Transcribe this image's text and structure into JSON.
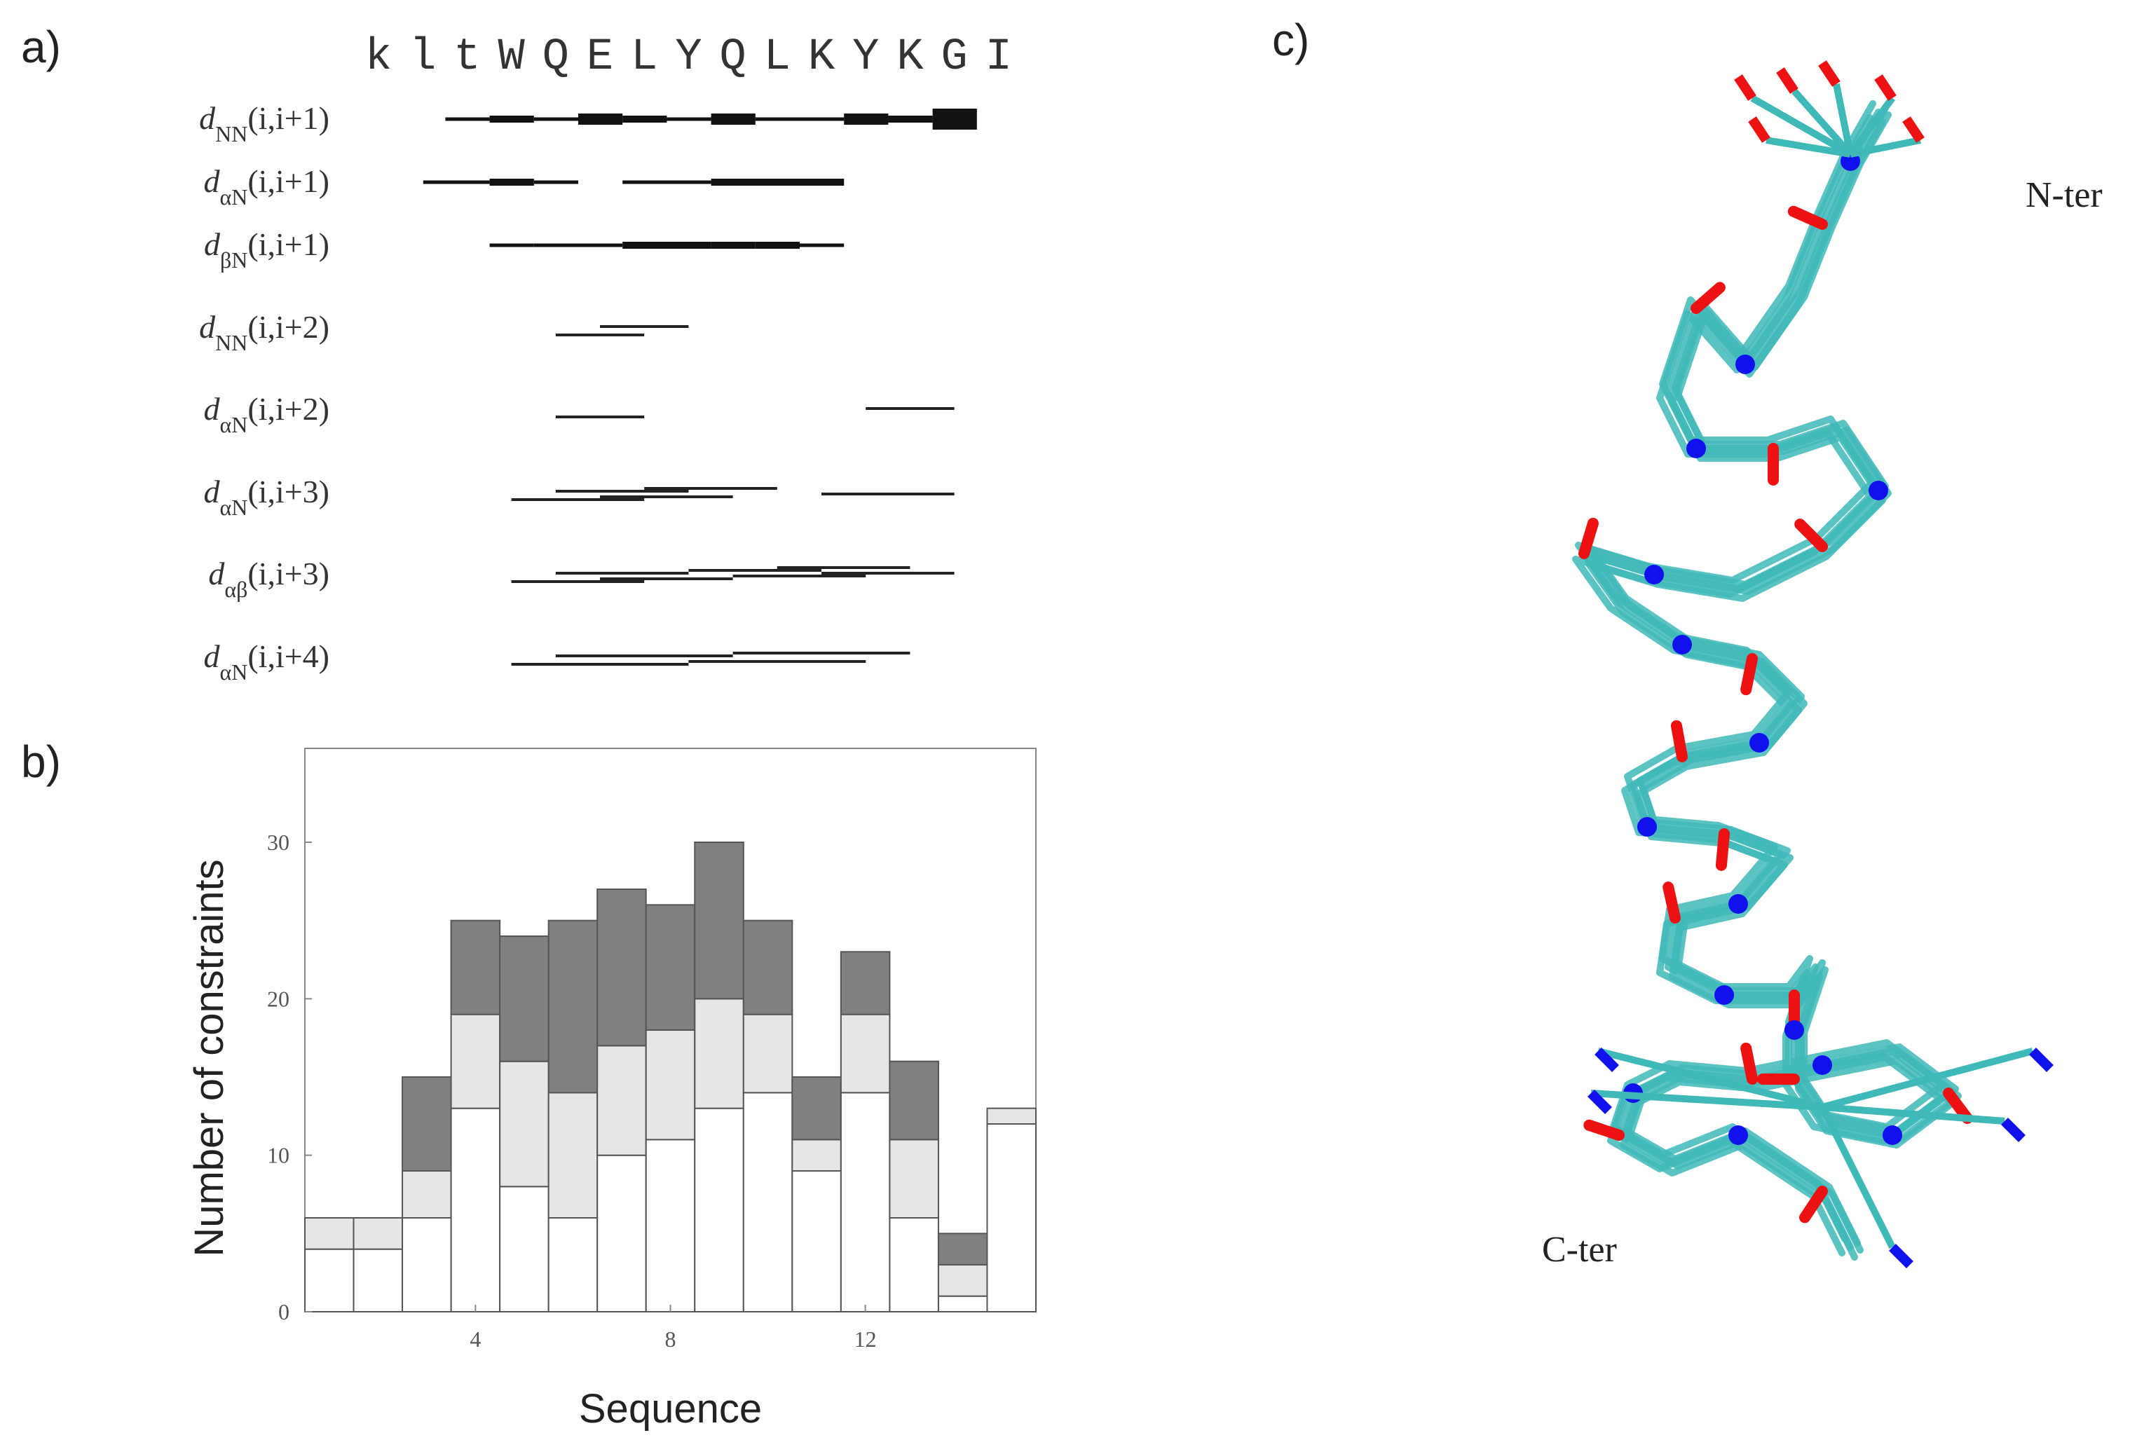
{
  "panels": {
    "a": "a)",
    "b": "b)",
    "c": "c)"
  },
  "sequence": [
    "k",
    "l",
    "t",
    "W",
    "Q",
    "E",
    "L",
    "Y",
    "Q",
    "L",
    "K",
    "Y",
    "K",
    "G",
    "I"
  ],
  "noe_rows": [
    {
      "label": "dNN(i,i+1)",
      "base": "d",
      "sub": "NN",
      "range": "(i,i+1)"
    },
    {
      "label": "dαN(i,i+1)",
      "base": "d",
      "sub": "αN",
      "range": "(i,i+1)"
    },
    {
      "label": "dβN(i,i+1)",
      "base": "d",
      "sub": "βN",
      "range": "(i,i+1)"
    },
    {
      "label": "dNN(i,i+2)",
      "base": "d",
      "sub": "NN",
      "range": "(i,i+2)"
    },
    {
      "label": "dαN(i,i+2)",
      "base": "d",
      "sub": "αN",
      "range": "(i,i+2)"
    },
    {
      "label": "dαN(i,i+3)",
      "base": "d",
      "sub": "αN",
      "range": "(i,i+3)"
    },
    {
      "label": "dαβ(i,i+3)",
      "base": "d",
      "sub": "αβ",
      "range": "(i,i+3)"
    },
    {
      "label": "dαN(i,i+4)",
      "base": "d",
      "sub": "αN",
      "range": "(i,i+4)"
    }
  ],
  "noe_data": {
    "sequential": [
      {
        "row": 0,
        "segments": [
          [
            2,
            3,
            1
          ],
          [
            3,
            4,
            2
          ],
          [
            4,
            5,
            1
          ],
          [
            5,
            6,
            3
          ],
          [
            6,
            7,
            2
          ],
          [
            7,
            8,
            1
          ],
          [
            8,
            9,
            3
          ],
          [
            9,
            10,
            1
          ],
          [
            10,
            11,
            1
          ],
          [
            11,
            12,
            3
          ],
          [
            12,
            13,
            2
          ],
          [
            13,
            14,
            4
          ]
        ]
      },
      {
        "row": 1,
        "segments": [
          [
            1.5,
            3,
            1
          ],
          [
            3,
            4,
            2
          ],
          [
            4,
            5,
            1
          ],
          [
            6,
            8,
            1
          ],
          [
            8,
            10,
            2
          ],
          [
            10,
            11,
            2
          ]
        ]
      },
      {
        "row": 2,
        "segments": [
          [
            3,
            4,
            1
          ],
          [
            4,
            5,
            1
          ],
          [
            5,
            6,
            1
          ],
          [
            6,
            8,
            2
          ],
          [
            8,
            9,
            2
          ],
          [
            9,
            10,
            2
          ],
          [
            10,
            11,
            1
          ]
        ]
      }
    ],
    "medium": [
      {
        "row": 3,
        "pairs": [
          [
            4,
            6
          ],
          [
            5,
            7
          ]
        ]
      },
      {
        "row": 4,
        "pairs": [
          [
            4,
            6
          ],
          [
            11,
            13
          ]
        ]
      },
      {
        "row": 5,
        "pairs": [
          [
            3,
            6
          ],
          [
            4,
            7
          ],
          [
            5,
            8
          ],
          [
            6,
            9
          ],
          [
            10,
            13
          ]
        ]
      },
      {
        "row": 6,
        "pairs": [
          [
            3,
            6
          ],
          [
            4,
            7
          ],
          [
            5,
            8
          ],
          [
            7,
            10
          ],
          [
            8,
            11
          ],
          [
            9,
            12
          ],
          [
            10,
            13
          ]
        ]
      },
      {
        "row": 7,
        "pairs": [
          [
            3,
            7
          ],
          [
            4,
            8
          ],
          [
            7,
            11
          ],
          [
            8,
            12
          ]
        ]
      }
    ]
  },
  "chart_data": {
    "type": "bar",
    "stacked": true,
    "xlabel": "Sequence",
    "ylabel": "Number of constraints",
    "x": [
      1,
      2,
      3,
      4,
      5,
      6,
      7,
      8,
      9,
      10,
      11,
      12,
      13,
      14,
      15
    ],
    "xticks": [
      4,
      8,
      12
    ],
    "yticks": [
      0,
      10,
      20,
      30
    ],
    "ylim": [
      0,
      36
    ],
    "xlim": [
      0.5,
      15.5
    ],
    "series": [
      {
        "values": [
          4,
          4,
          6,
          13,
          8,
          6,
          10,
          11,
          13,
          14,
          9,
          14,
          6,
          1,
          12
        ],
        "color": "#ffffff"
      },
      {
        "values": [
          2,
          2,
          3,
          6,
          8,
          8,
          7,
          7,
          7,
          5,
          2,
          5,
          5,
          2,
          1
        ],
        "color": "#e6e6e6"
      },
      {
        "values": [
          0,
          0,
          6,
          6,
          8,
          11,
          10,
          8,
          10,
          6,
          4,
          4,
          5,
          2,
          0
        ],
        "color": "#808080"
      }
    ]
  },
  "structure": {
    "n_term_label": "N-ter",
    "c_term_label": "C-ter",
    "colors": {
      "carbon": "#3fb8b8",
      "oxygen": "#ee1111",
      "nitrogen": "#1111ee"
    }
  }
}
